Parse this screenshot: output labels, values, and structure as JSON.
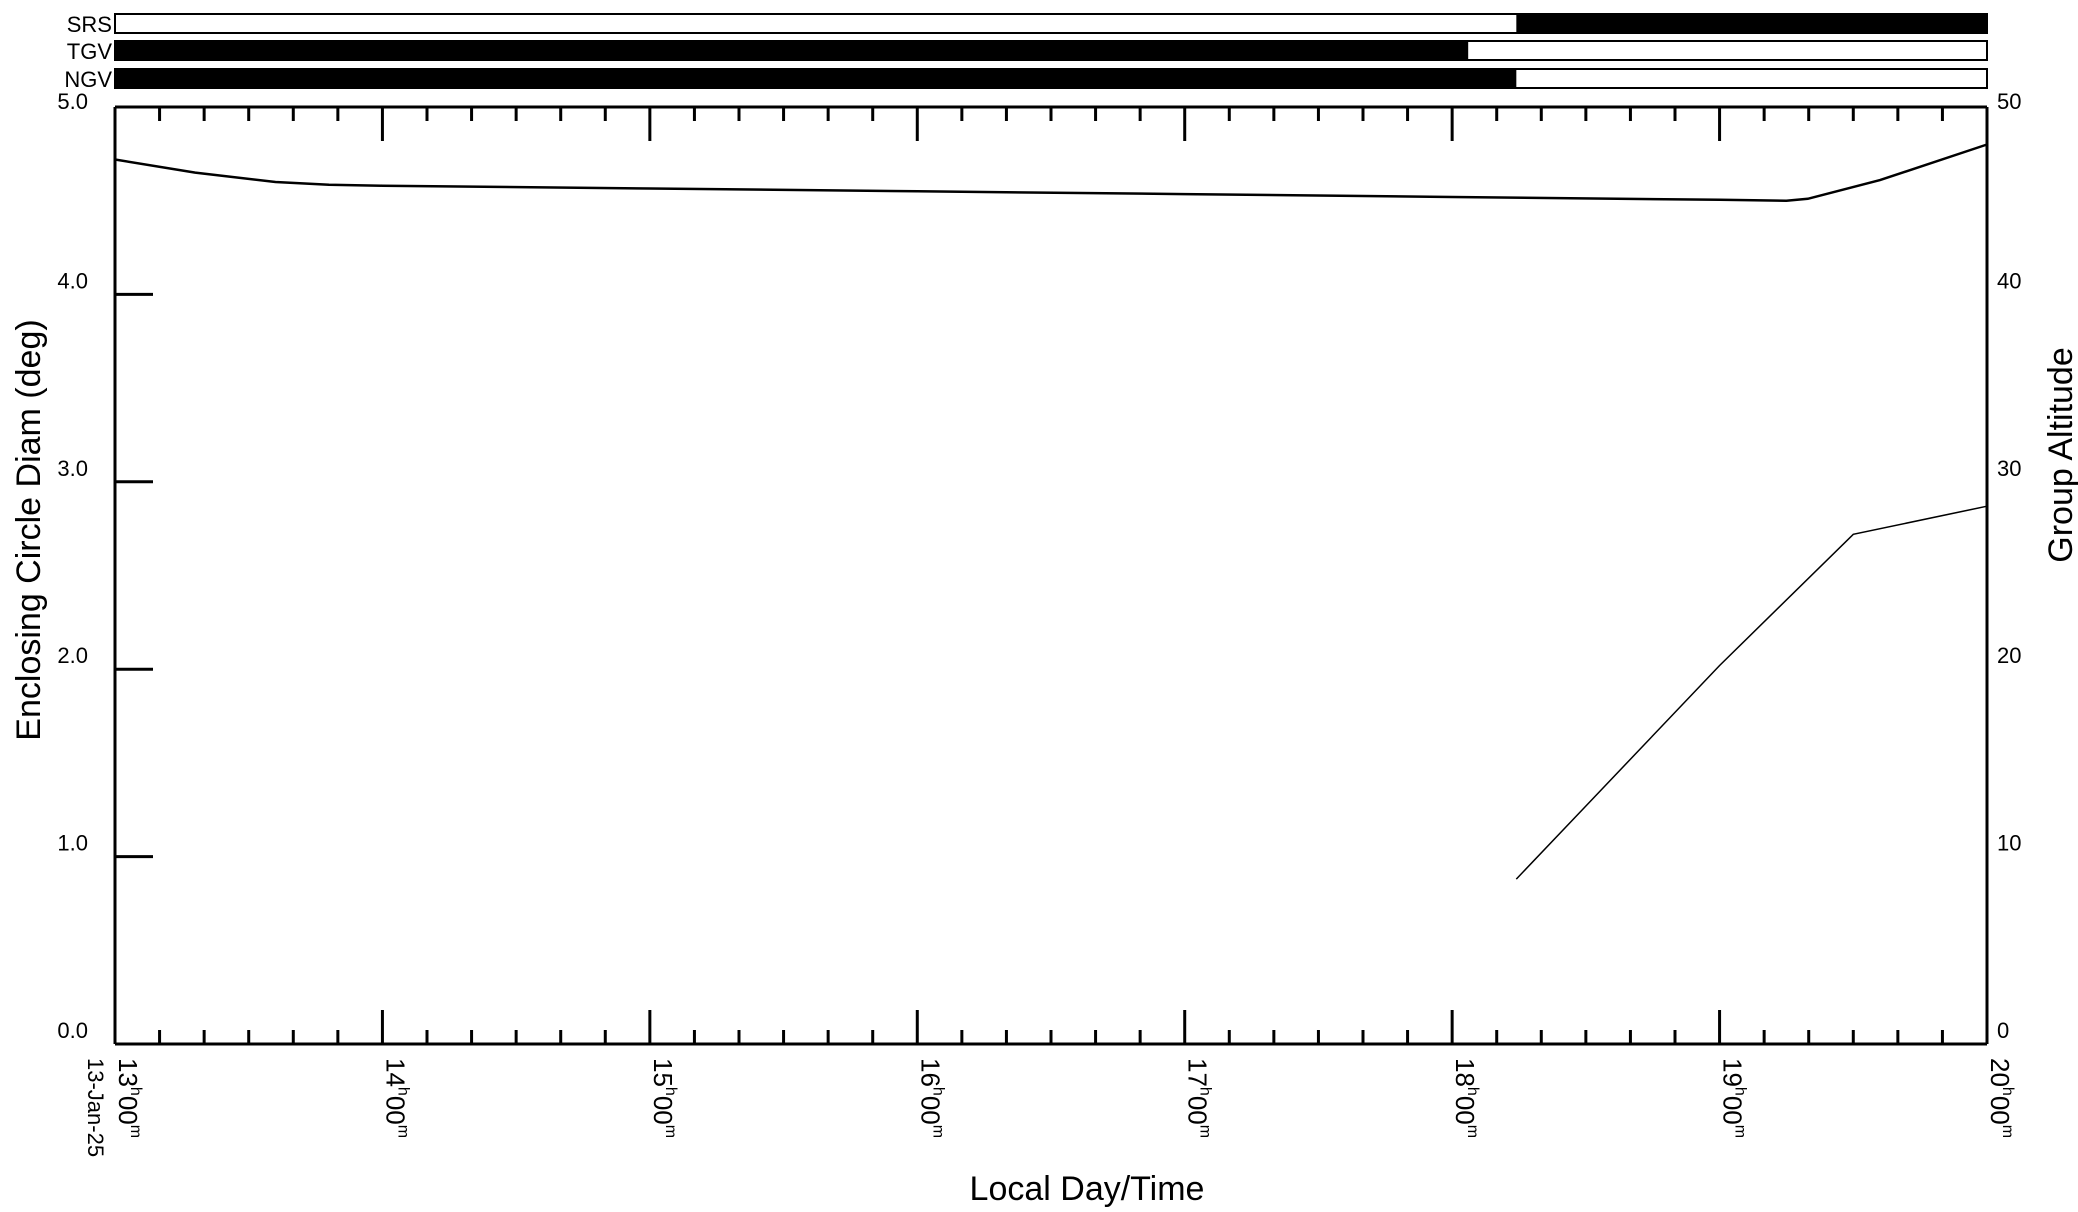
{
  "chart_data": {
    "type": "line",
    "xlabel": "Local Day/Time",
    "ylabel_left": "Enclosing Circle Diam (deg)",
    "ylabel_right": "Group Altitude",
    "date_label": "13-Jan-25",
    "x_hours_range": [
      13,
      20
    ],
    "ylim_left": [
      0,
      5
    ],
    "ylim_right": [
      0,
      50
    ],
    "yticks_left": [
      "0.0",
      "1.0",
      "2.0",
      "3.0",
      "4.0",
      "5.0"
    ],
    "yticks_right": [
      "0",
      "10",
      "20",
      "30",
      "40",
      "50"
    ],
    "xticks": [
      {
        "h": "13",
        "m": "00"
      },
      {
        "h": "14",
        "m": "00"
      },
      {
        "h": "15",
        "m": "00"
      },
      {
        "h": "16",
        "m": "00"
      },
      {
        "h": "17",
        "m": "00"
      },
      {
        "h": "18",
        "m": "00"
      },
      {
        "h": "19",
        "m": "00"
      },
      {
        "h": "20",
        "m": "00"
      }
    ],
    "xtick_h_sup": "h",
    "xtick_m_sup": "m",
    "grid": false,
    "status_bars": [
      {
        "label": "SRS",
        "filled_from_hour": 18.24,
        "filled_to_hour": 20.0
      },
      {
        "label": "TGV",
        "filled_from_hour": 13.0,
        "filled_to_hour": 18.06
      },
      {
        "label": "NGV",
        "filled_from_hour": 13.0,
        "filled_to_hour": 18.24
      }
    ],
    "series": [
      {
        "axis": "left",
        "x_hours": [
          13.0,
          13.3,
          13.6,
          13.8,
          14.0,
          15.0,
          16.0,
          17.0,
          18.0,
          19.0,
          19.25,
          19.33,
          19.6,
          20.0
        ],
        "y": [
          4.72,
          4.65,
          4.6,
          4.585,
          4.58,
          4.565,
          4.55,
          4.535,
          4.52,
          4.505,
          4.5,
          4.51,
          4.61,
          4.8
        ]
      },
      {
        "axis": "right",
        "x_hours": [
          18.24,
          18.5,
          19.0,
          19.5,
          20.0
        ],
        "y": [
          8.8,
          12.7,
          20.2,
          27.2,
          28.7
        ]
      }
    ]
  }
}
